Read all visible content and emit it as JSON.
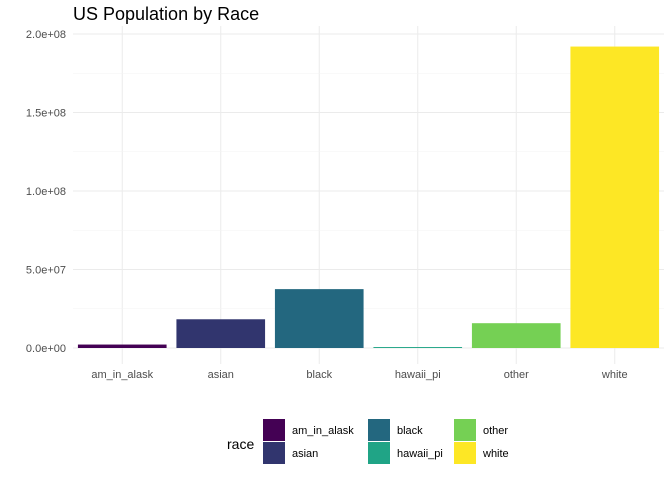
{
  "chart_data": {
    "type": "bar",
    "title": "US Population by Race",
    "xlabel": "",
    "ylabel": "",
    "categories": [
      "am_in_alask",
      "asian",
      "black",
      "hawaii_pi",
      "other",
      "white"
    ],
    "values": [
      2200000,
      18300000,
      37500000,
      600000,
      15800000,
      192000000
    ],
    "colors": [
      "#440154",
      "#31356E",
      "#23677F",
      "#20A486",
      "#75D054",
      "#FDE725"
    ],
    "ylim": [
      0,
      200000000
    ],
    "y_ticks": [
      {
        "value": 0,
        "label": "0.0e+00"
      },
      {
        "value": 50000000,
        "label": "5.0e+07"
      },
      {
        "value": 100000000,
        "label": "1.0e+08"
      },
      {
        "value": 150000000,
        "label": "1.5e+08"
      },
      {
        "value": 200000000,
        "label": "2.0e+08"
      }
    ],
    "grid": true,
    "legend": {
      "title": "race",
      "position": "bottom",
      "entries": [
        "am_in_alask",
        "asian",
        "black",
        "hawaii_pi",
        "other",
        "white"
      ]
    }
  }
}
